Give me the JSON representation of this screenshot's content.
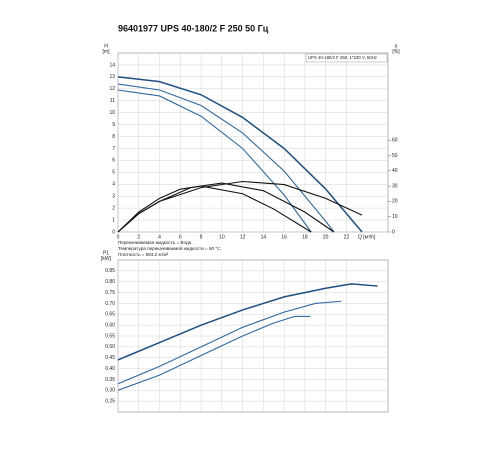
{
  "chart_data": [
    {
      "type": "line",
      "title": "96401977 UPS 40-180/2 F 250 50 Гц",
      "legend_text": "UPS 40-180/2 F 250, 1*230 V, 50Hz",
      "ylabel": [
        "H",
        "[m]"
      ],
      "y2label": [
        "η",
        "[%]"
      ],
      "xlabel": "Q [м³/h]",
      "notes": [
        "Перекачиваемая жидкость = Вода",
        "Температура перекачиваемой жидкости = 60 °C",
        "Плотность = 983.2 кг/м³"
      ],
      "xlim": [
        0,
        26
      ],
      "xticks": [
        0,
        2,
        4,
        6,
        8,
        10,
        12,
        14,
        16,
        18,
        20,
        22
      ],
      "ylim": [
        0,
        15
      ],
      "yticks": [
        0,
        1,
        2,
        3,
        4,
        5,
        6,
        7,
        8,
        9,
        10,
        11,
        12,
        13,
        14
      ],
      "y2lim": [
        0,
        117
      ],
      "y2ticks": [
        0,
        10,
        20,
        30,
        40,
        50,
        60
      ],
      "grid": true,
      "series": [
        {
          "color": "#1f4f82",
          "x": [
            0,
            4,
            8,
            12,
            16,
            20,
            23.5
          ],
          "values": [
            13.0,
            12.6,
            11.5,
            9.6,
            7.0,
            3.6,
            0
          ]
        },
        {
          "color": "#2f6aa0",
          "x": [
            0,
            4,
            8,
            12,
            16,
            20,
            20.8
          ],
          "values": [
            12.4,
            11.9,
            10.6,
            8.3,
            5.1,
            0.9,
            0
          ]
        },
        {
          "color": "#2f6aa0",
          "x": [
            0,
            4,
            8,
            12,
            16,
            18.6
          ],
          "values": [
            11.9,
            11.4,
            9.7,
            7.0,
            3.1,
            0
          ]
        },
        {
          "color": "#111111",
          "axis": "y2",
          "x": [
            0,
            2,
            4,
            8,
            12,
            16,
            20,
            23.5
          ],
          "values": [
            0,
            12,
            20,
            29,
            33,
            31,
            22,
            11
          ]
        },
        {
          "color": "#111111",
          "axis": "y2",
          "x": [
            0,
            2,
            4,
            7,
            10,
            14,
            18,
            20.8
          ],
          "values": [
            0,
            12,
            20,
            29,
            32,
            27,
            13,
            0
          ]
        },
        {
          "color": "#111111",
          "axis": "y2",
          "x": [
            0,
            2,
            4,
            6,
            8,
            12,
            15,
            18.6
          ],
          "values": [
            0,
            13,
            22,
            28,
            30,
            25,
            15,
            0
          ]
        }
      ]
    },
    {
      "type": "line",
      "ylabel": [
        "P1",
        "[kW]"
      ],
      "xlim": [
        0,
        26
      ],
      "xticks": [
        0,
        2,
        4,
        6,
        8,
        10,
        12,
        14,
        16,
        18,
        20,
        22
      ],
      "ylim": [
        0.2,
        0.9
      ],
      "yticks": [
        0.25,
        {
          "value": 0.3,
          "label": "0.30"
        },
        0.35,
        {
          "value": 0.4,
          "label": "0.40"
        },
        0.45,
        {
          "value": 0.5,
          "label": "0.50"
        },
        0.55,
        {
          "value": 0.6,
          "label": "0.60"
        },
        0.65,
        {
          "value": 0.7,
          "label": "0.70"
        },
        0.75,
        {
          "value": 0.8,
          "label": "0.80"
        },
        0.85
      ],
      "grid": true,
      "series": [
        {
          "color": "#1f4f82",
          "x": [
            0,
            4,
            8,
            12,
            16,
            20,
            22.5,
            25
          ],
          "values": [
            0.44,
            0.52,
            0.6,
            0.67,
            0.73,
            0.77,
            0.79,
            0.78
          ]
        },
        {
          "color": "#2f6aa0",
          "x": [
            0,
            4,
            8,
            12,
            16,
            19,
            21.5
          ],
          "values": [
            0.33,
            0.41,
            0.5,
            0.59,
            0.66,
            0.7,
            0.71
          ]
        },
        {
          "color": "#2f6aa0",
          "x": [
            0,
            4,
            8,
            12,
            15,
            17,
            18.5
          ],
          "values": [
            0.3,
            0.37,
            0.46,
            0.55,
            0.61,
            0.64,
            0.64
          ]
        }
      ]
    }
  ]
}
